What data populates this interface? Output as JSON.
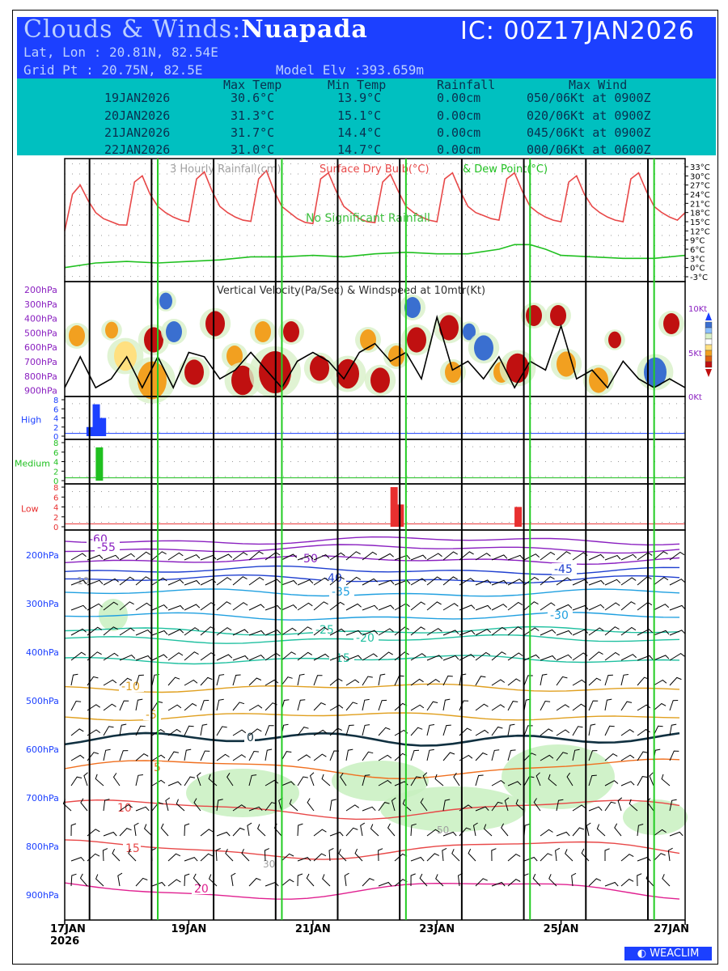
{
  "header": {
    "title_prefix": "Clouds & Winds:",
    "location": "Nuapada",
    "initial_condition": "IC: 00Z17JAN2026",
    "lat_lon": "Lat, Lon : 20.81N, 82.54E",
    "grid_point": "Grid Pt  : 20.75N, 82.5E",
    "model_elevation": "Model Elv :393.659m"
  },
  "summary": {
    "columns": [
      "Max Temp",
      "Min Temp",
      "Rainfall",
      "Max Wind"
    ],
    "rows": [
      {
        "date": "19JAN2026",
        "max_temp": "30.6°C",
        "min_temp": "13.9°C",
        "rainfall": "0.00cm",
        "max_wind": "050/06Kt at 0900Z"
      },
      {
        "date": "20JAN2026",
        "max_temp": "31.3°C",
        "min_temp": "15.1°C",
        "rainfall": "0.00cm",
        "max_wind": "020/06Kt at 0900Z"
      },
      {
        "date": "21JAN2026",
        "max_temp": "31.7°C",
        "min_temp": "14.4°C",
        "rainfall": "0.00cm",
        "max_wind": "045/06Kt at 0900Z"
      },
      {
        "date": "22JAN2026",
        "max_temp": "31.0°C",
        "min_temp": "14.7°C",
        "rainfall": "0.00cm",
        "max_wind": "000/06Kt at 0600Z"
      }
    ]
  },
  "colors": {
    "header_bg": "#1c40ff",
    "summary_bg": "#00c0c0",
    "temperature": "#e84848",
    "dew_point": "#20c020",
    "pressure_label": "#1c40ff",
    "vv_pressure_label": "#8a20c0",
    "cloud_high": "#1c40ff",
    "cloud_medium": "#20c020",
    "cloud_low": "#e83030"
  },
  "chart_data": [
    {
      "type": "line",
      "panel": "surface",
      "title": "3 Hourly Rainfall(cm) Surface Dry Bulb(°C) & Dew Point(°C)",
      "title_parts": [
        "3 Hourly Rainfall(cm)",
        "Surface Dry Bulb(°C)",
        "& Dew Point(°C)"
      ],
      "annotation": "No Significant Rainfall",
      "y_ticks": [
        "33°C",
        "30°C",
        "27°C",
        "24°C",
        "21°C",
        "18°C",
        "15°C",
        "12°C",
        "9°C",
        "6°C",
        "3°C",
        "0°C",
        "-3°C"
      ],
      "ylim": [
        -3,
        33
      ],
      "x_days": [
        0,
        10
      ],
      "series": [
        {
          "name": "Surface Dry Bulb(°C)",
          "color": "#e84848",
          "x": [
            0,
            0.125,
            0.25,
            0.375,
            0.5,
            0.625,
            0.75,
            0.875,
            1,
            1.125,
            1.25,
            1.375,
            1.5,
            1.625,
            1.75,
            1.875,
            2,
            2.125,
            2.25,
            2.375,
            2.5,
            2.625,
            2.75,
            2.875,
            3,
            3.125,
            3.25,
            3.375,
            3.5,
            3.625,
            3.75,
            3.875,
            4,
            4.125,
            4.25,
            4.375,
            4.5,
            4.625,
            4.75,
            4.875,
            5,
            5.125,
            5.25,
            5.375,
            5.5,
            5.625,
            5.75,
            5.875,
            6,
            6.125,
            6.25,
            6.375,
            6.5,
            6.625,
            6.75,
            6.875,
            7,
            7.125,
            7.25,
            7.375,
            7.5,
            7.625,
            7.75,
            7.875,
            8,
            8.125,
            8.25,
            8.375,
            8.5,
            8.625,
            8.75,
            8.875,
            9,
            9.125,
            9.25,
            9.375,
            9.5,
            9.625,
            9.75,
            9.875,
            10
          ],
          "y": [
            12,
            24,
            27,
            22,
            18,
            16,
            15,
            14,
            13.9,
            28,
            30,
            24,
            20,
            18,
            16.5,
            15.5,
            15,
            29,
            31.3,
            25,
            20,
            18,
            16.5,
            15.5,
            15.1,
            29,
            31.7,
            25,
            20,
            18,
            16,
            14.8,
            14.4,
            29,
            31,
            25,
            20,
            18,
            16,
            15,
            14.7,
            28,
            30.5,
            25,
            20,
            18,
            16.5,
            15.5,
            15,
            29,
            31,
            25,
            20,
            18,
            17,
            16,
            15.5,
            29,
            31,
            25,
            20,
            18,
            16.5,
            15.5,
            15,
            28,
            30,
            24,
            20,
            18,
            16.5,
            15.5,
            15,
            29,
            31,
            25,
            20,
            18,
            16.5,
            15.5,
            18
          ]
        },
        {
          "name": "Dew Point(°C)",
          "color": "#20c020",
          "x": [
            0,
            0.5,
            1,
            1.5,
            2,
            2.5,
            3,
            3.5,
            4,
            4.5,
            5,
            5.5,
            6,
            6.5,
            7,
            7.25,
            7.5,
            7.75,
            8,
            8.5,
            9,
            9.5,
            10
          ],
          "y": [
            0,
            1.5,
            2,
            1.5,
            2,
            2.5,
            3.5,
            3.5,
            4,
            3.5,
            4.5,
            5,
            4.5,
            4.5,
            6,
            7.5,
            7.5,
            6,
            4,
            3.5,
            3,
            3,
            4
          ]
        }
      ]
    },
    {
      "type": "heatmap",
      "panel": "vertical-velocity",
      "title": "Vertical Velocity(Pa/Sec) & Windspeed at 10mtr(Kt)",
      "y_ticks": [
        "200hPa",
        "300hPa",
        "400hPa",
        "500hPa",
        "600hPa",
        "700hPa",
        "800hPa",
        "900hPa"
      ],
      "right_ticks": [
        "10Kt",
        "5Kt",
        "0Kt"
      ],
      "windspeed_kt": {
        "x": [
          0,
          0.25,
          0.5,
          0.75,
          1,
          1.25,
          1.5,
          1.75,
          2,
          2.25,
          2.5,
          2.75,
          3,
          3.25,
          3.5,
          3.75,
          4,
          4.25,
          4.5,
          4.75,
          5,
          5.25,
          5.5,
          5.75,
          6,
          6.25,
          6.5,
          6.75,
          7,
          7.25,
          7.5,
          7.75,
          8,
          8.25,
          8.5,
          8.75,
          9,
          9.25,
          9.5,
          9.75,
          10
        ],
        "y": [
          1,
          4.5,
          1,
          2,
          4.5,
          1,
          4.5,
          1,
          5,
          4.5,
          2,
          3,
          5,
          3,
          1,
          4,
          5,
          4,
          2,
          5,
          6,
          4,
          5,
          2,
          9,
          3,
          4,
          2,
          4.5,
          1,
          4,
          3,
          8,
          2,
          3,
          1,
          4,
          2,
          1,
          2,
          1
        ]
      }
    },
    {
      "type": "bar",
      "panel": "cloud-high",
      "label": "High",
      "y_ticks": [
        "8",
        "6",
        "4",
        "2",
        "0"
      ],
      "ylim": [
        0,
        8
      ],
      "x": [
        0.35,
        0.45,
        0.55
      ],
      "values": [
        2,
        7,
        4
      ],
      "color": "#1c40ff"
    },
    {
      "type": "bar",
      "panel": "cloud-medium",
      "label": "Medium",
      "y_ticks": [
        "8",
        "6",
        "4",
        "2",
        "0"
      ],
      "ylim": [
        0,
        8
      ],
      "x": [
        0.5
      ],
      "values": [
        7
      ],
      "color": "#20c020"
    },
    {
      "type": "bar",
      "panel": "cloud-low",
      "label": "Low",
      "y_ticks": [
        "8",
        "6",
        "4",
        "2",
        "0"
      ],
      "ylim": [
        0,
        8
      ],
      "x": [
        5.25,
        5.35,
        7.25
      ],
      "values": [
        8,
        4.5,
        4
      ],
      "color": "#e83030"
    },
    {
      "type": "line",
      "panel": "upper-air",
      "title": "Temperature isotherms and winds",
      "y_ticks": [
        "200hPa",
        "300hPa",
        "400hPa",
        "500hPa",
        "600hPa",
        "700hPa",
        "800hPa",
        "900hPa"
      ],
      "isotherm_labels": [
        "-60",
        "-55",
        "-50",
        "-45",
        "-40",
        "-35",
        "-30",
        "-25",
        "-20",
        "-15",
        "-10",
        "-5",
        "0",
        "5",
        "10",
        "15",
        "20"
      ],
      "rh_labels": [
        "10",
        "30",
        "50"
      ]
    }
  ],
  "x_axis": {
    "ticks": [
      "17JAN",
      "19JAN",
      "21JAN",
      "23JAN",
      "25JAN",
      "27JAN"
    ],
    "year": "2026"
  },
  "footer": {
    "logo": "WEACLIM"
  }
}
